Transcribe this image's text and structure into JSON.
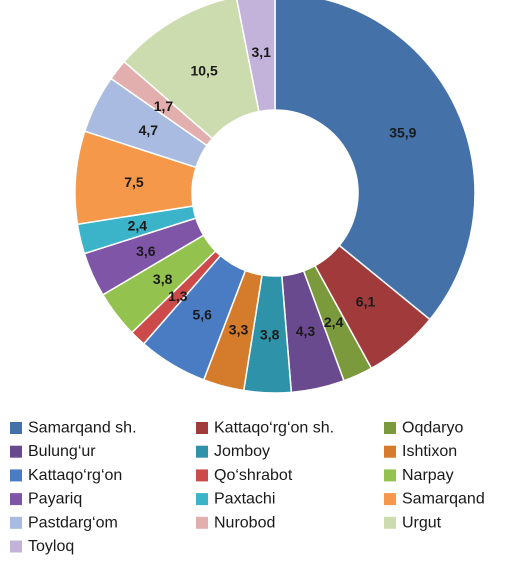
{
  "chart_data": {
    "type": "pie",
    "title": "",
    "legend_position": "bottom",
    "donut": true,
    "slices": [
      {
        "name": "Samarqand sh.",
        "value": 35.9,
        "label": "35,9",
        "color": "#4472a8"
      },
      {
        "name": "Kattaqo‘rg‘on sh.",
        "value": 6.1,
        "label": "6,1",
        "color": "#a13a3a"
      },
      {
        "name": "Oqdaryo",
        "value": 2.4,
        "label": "2,4",
        "color": "#7a9a3c"
      },
      {
        "name": "Bulung‘ur",
        "value": 4.3,
        "label": "4,3",
        "color": "#6a4a8e"
      },
      {
        "name": "Jomboy",
        "value": 3.8,
        "label": "3,8",
        "color": "#2e93a8"
      },
      {
        "name": "Ishtixon",
        "value": 3.3,
        "label": "3,3",
        "color": "#d47b2c"
      },
      {
        "name": "Kattaqo‘rg‘on",
        "value": 5.6,
        "label": "5,6",
        "color": "#4a7cc4"
      },
      {
        "name": "Qo‘shrabot",
        "value": 1.3,
        "label": "1,3",
        "color": "#cc4a4a"
      },
      {
        "name": "Narpay",
        "value": 3.8,
        "label": "3,8",
        "color": "#93c24e"
      },
      {
        "name": "Payariq",
        "value": 3.6,
        "label": "3,6",
        "color": "#7f55a8"
      },
      {
        "name": "Paxtachi",
        "value": 2.4,
        "label": "2,4",
        "color": "#3bb3c8"
      },
      {
        "name": "Samarqand",
        "value": 7.5,
        "label": "7,5",
        "color": "#f5984a"
      },
      {
        "name": "Pastdarg‘om",
        "value": 4.7,
        "label": "4,7",
        "color": "#a9bbe0"
      },
      {
        "name": "Nurobod",
        "value": 1.7,
        "label": "1,7",
        "color": "#e3aeae"
      },
      {
        "name": "Urgut",
        "value": 10.5,
        "label": "10,5",
        "color": "#cddcae"
      },
      {
        "name": "Toyloq",
        "value": 3.1,
        "label": "3,1",
        "color": "#c3b3da"
      }
    ]
  }
}
